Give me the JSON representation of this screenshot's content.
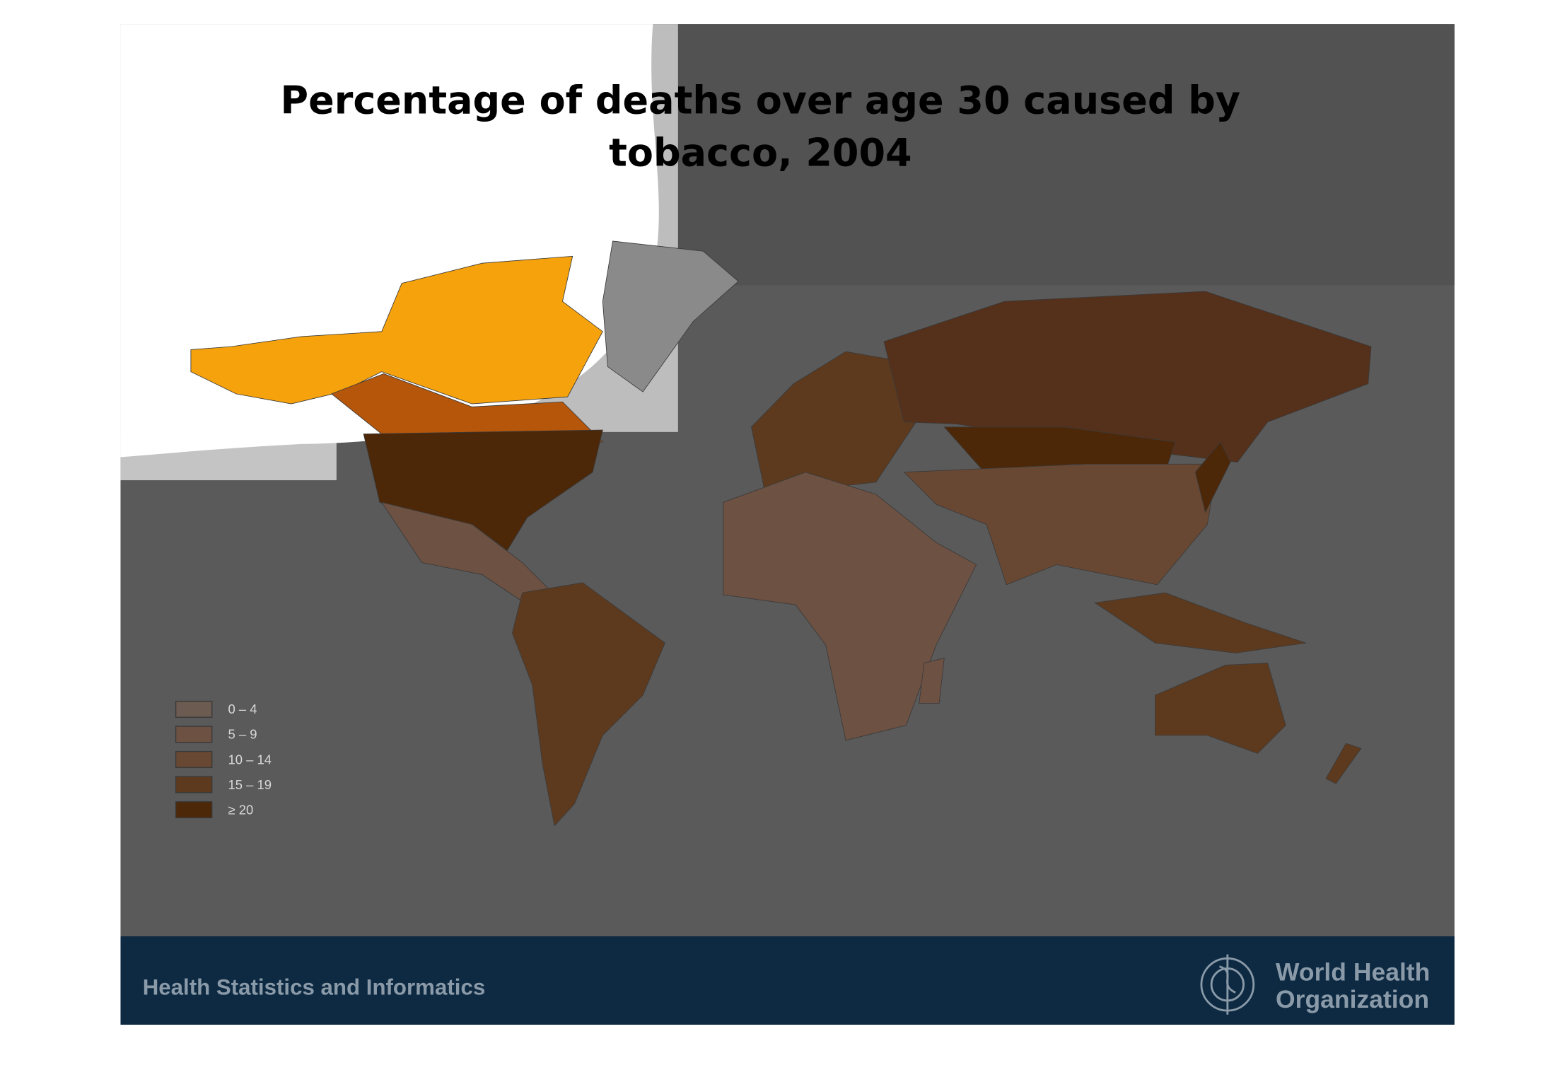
{
  "title": [
    "Percentage of deaths over age 30 caused by",
    "tobacco, 2004"
  ],
  "legend": [
    {
      "label": "0 – 4",
      "color": "#6b5b50"
    },
    {
      "label": "5 – 9",
      "color": "#6d5142"
    },
    {
      "label": "10 – 14",
      "color": "#684833"
    },
    {
      "label": "15 – 19",
      "color": "#5d3a1e"
    },
    {
      "label": "≥ 20",
      "color": "#4c2708"
    }
  ],
  "footer": {
    "left": "Health Statistics and Informatics",
    "logo_line1": "World Health",
    "logo_line2": "Organization"
  }
}
